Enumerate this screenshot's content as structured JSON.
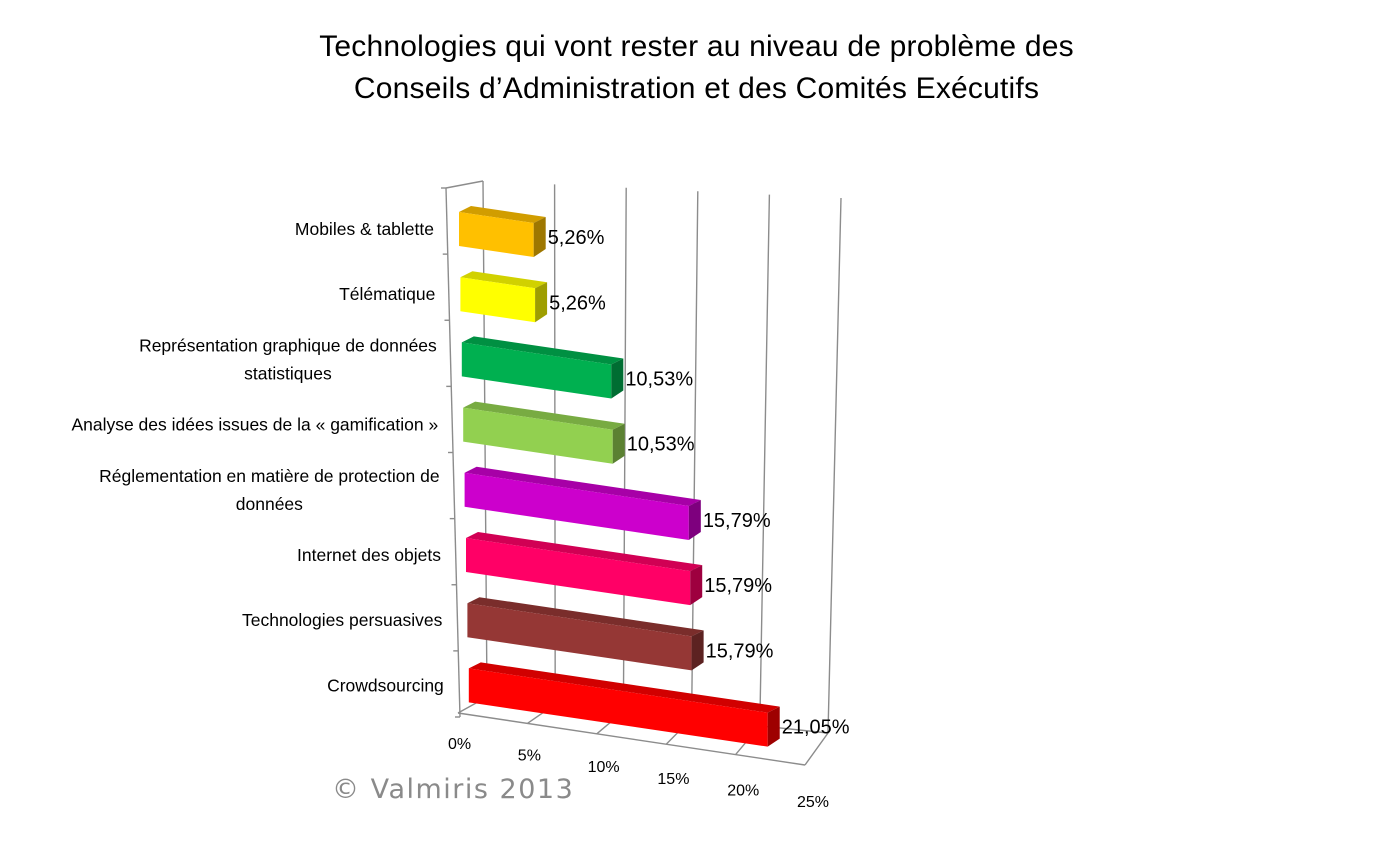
{
  "chart_data": {
    "type": "bar",
    "orientation": "horizontal",
    "style": "3d",
    "title": [
      "Technologies qui vont rester au niveau de problème des",
      "Conseils d’Administration et des Comités Exécutifs"
    ],
    "categories": [
      [
        "Mobiles & tablette"
      ],
      [
        "Télématique"
      ],
      [
        "Représentation graphique de données",
        "statistiques"
      ],
      [
        "Analyse des idées issues de la « gamification »"
      ],
      [
        "Réglementation en matière de protection de",
        "données"
      ],
      [
        "Internet des objets"
      ],
      [
        "Technologies persuasives"
      ],
      [
        "Crowdsourcing"
      ]
    ],
    "values": [
      5.26,
      5.26,
      10.53,
      10.53,
      15.79,
      15.79,
      15.79,
      21.05
    ],
    "value_labels": [
      "5,26%",
      "5,26%",
      "10,53%",
      "10,53%",
      "15,79%",
      "15,79%",
      "15,79%",
      "21,05%"
    ],
    "colors": [
      "#FFC000",
      "#FFFF00",
      "#00B050",
      "#92D050",
      "#CC00CC",
      "#FF0066",
      "#953735",
      "#FF0000"
    ],
    "x_ticks": [
      "0%",
      "5%",
      "10%",
      "15%",
      "20%",
      "25%"
    ],
    "xlim": [
      0,
      25
    ],
    "grid": true,
    "legend": "none"
  },
  "watermark": "© Valmiris 2013"
}
